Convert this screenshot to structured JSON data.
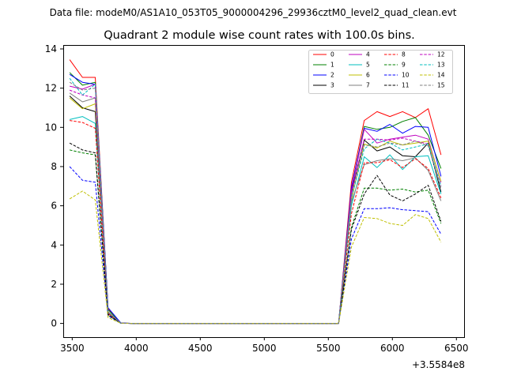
{
  "figure": {
    "suptitle": "Data file: modeM0/AS1A10_053T05_9000004296_29936cztM0_level2_quad_clean.evt",
    "x_offset_label": "+3.5584e8"
  },
  "chart_data": {
    "type": "line",
    "title": "Quadrant 2 module wise count rates with 100.0s bins.",
    "xlabel": "",
    "ylabel": "",
    "x_offset": 355840000,
    "xlim": [
      3430,
      6560
    ],
    "ylim": [
      -0.7,
      14.2
    ],
    "xticks": [
      3500,
      4000,
      4500,
      5000,
      5500,
      6000,
      6500
    ],
    "yticks": [
      0,
      2,
      4,
      6,
      8,
      10,
      12,
      14
    ],
    "legend_position": "top-right",
    "legend_columns": 4,
    "x": [
      3480,
      3580,
      3680,
      3780,
      3880,
      3980,
      4080,
      4180,
      4280,
      4380,
      4480,
      4580,
      4680,
      4780,
      4880,
      4980,
      5080,
      5180,
      5280,
      5380,
      5480,
      5580,
      5680,
      5780,
      5880,
      5980,
      6080,
      6180,
      6280,
      6380
    ],
    "series": [
      {
        "name": "0",
        "color": "#ff0000",
        "dash": "solid",
        "values": [
          13.45,
          12.55,
          12.55,
          0.75,
          0.02,
          0,
          0,
          0,
          0,
          0,
          0,
          0,
          0,
          0,
          0,
          0,
          0,
          0,
          0,
          0,
          0,
          0,
          7.2,
          10.35,
          10.8,
          10.55,
          10.8,
          10.5,
          10.95,
          8.6
        ]
      },
      {
        "name": "1",
        "color": "#008000",
        "dash": "solid",
        "values": [
          12.8,
          12.15,
          12.3,
          0.7,
          0.02,
          0,
          0,
          0,
          0,
          0,
          0,
          0,
          0,
          0,
          0,
          0,
          0,
          0,
          0,
          0,
          0,
          0,
          6.9,
          10.05,
          9.9,
          10.0,
          10.3,
          10.5,
          9.6,
          7.9
        ]
      },
      {
        "name": "2",
        "color": "#0000ff",
        "dash": "solid",
        "values": [
          12.7,
          12.3,
          12.2,
          0.8,
          0.02,
          0,
          0,
          0,
          0,
          0,
          0,
          0,
          0,
          0,
          0,
          0,
          0,
          0,
          0,
          0,
          0,
          0,
          6.95,
          9.95,
          9.8,
          10.15,
          9.7,
          10.05,
          10.0,
          7.5
        ]
      },
      {
        "name": "3",
        "color": "#000000",
        "dash": "solid",
        "values": [
          11.6,
          11.0,
          10.8,
          0.5,
          0.01,
          0,
          0,
          0,
          0,
          0,
          0,
          0,
          0,
          0,
          0,
          0,
          0,
          0,
          0,
          0,
          0,
          0,
          6.7,
          9.35,
          8.8,
          9.0,
          8.55,
          8.5,
          9.2,
          6.7
        ]
      },
      {
        "name": "4",
        "color": "#bf00bf",
        "dash": "solid",
        "values": [
          12.1,
          11.95,
          12.2,
          0.6,
          0.01,
          0,
          0,
          0,
          0,
          0,
          0,
          0,
          0,
          0,
          0,
          0,
          0,
          0,
          0,
          0,
          0,
          0,
          6.8,
          9.9,
          9.2,
          9.4,
          9.5,
          9.6,
          9.4,
          7.2
        ]
      },
      {
        "name": "5",
        "color": "#00bfbf",
        "dash": "solid",
        "values": [
          10.4,
          10.55,
          10.2,
          0.5,
          0.01,
          0,
          0,
          0,
          0,
          0,
          0,
          0,
          0,
          0,
          0,
          0,
          0,
          0,
          0,
          0,
          0,
          0,
          6.0,
          8.5,
          7.95,
          8.6,
          7.85,
          8.5,
          8.55,
          6.6
        ]
      },
      {
        "name": "6",
        "color": "#bfbf00",
        "dash": "solid",
        "values": [
          11.5,
          10.95,
          11.2,
          0.55,
          0.01,
          0,
          0,
          0,
          0,
          0,
          0,
          0,
          0,
          0,
          0,
          0,
          0,
          0,
          0,
          0,
          0,
          0,
          6.3,
          9.15,
          8.95,
          9.3,
          9.1,
          9.2,
          9.3,
          7.25
        ]
      },
      {
        "name": "7",
        "color": "#808080",
        "dash": "solid",
        "values": [
          11.75,
          11.3,
          11.5,
          0.55,
          0.01,
          0,
          0,
          0,
          0,
          0,
          0,
          0,
          0,
          0,
          0,
          0,
          0,
          0,
          0,
          0,
          0,
          0,
          6.2,
          8.1,
          8.3,
          8.4,
          8.3,
          8.45,
          7.8,
          6.25
        ]
      },
      {
        "name": "8",
        "color": "#ff0000",
        "dash": "dashed",
        "values": [
          10.35,
          10.25,
          9.95,
          0.5,
          0.01,
          0,
          0,
          0,
          0,
          0,
          0,
          0,
          0,
          0,
          0,
          0,
          0,
          0,
          0,
          0,
          0,
          0,
          5.6,
          8.2,
          8.2,
          8.35,
          7.95,
          8.4,
          7.9,
          6.4
        ]
      },
      {
        "name": "9",
        "color": "#008000",
        "dash": "dashed",
        "values": [
          8.85,
          8.7,
          8.6,
          0.4,
          0.01,
          0,
          0,
          0,
          0,
          0,
          0,
          0,
          0,
          0,
          0,
          0,
          0,
          0,
          0,
          0,
          0,
          0,
          4.9,
          6.9,
          6.9,
          6.8,
          6.85,
          6.7,
          6.8,
          5.1
        ]
      },
      {
        "name": "10",
        "color": "#0000ff",
        "dash": "dashed",
        "values": [
          8.0,
          7.3,
          7.2,
          0.4,
          0.01,
          0,
          0,
          0,
          0,
          0,
          0,
          0,
          0,
          0,
          0,
          0,
          0,
          0,
          0,
          0,
          0,
          0,
          4.3,
          5.85,
          5.85,
          5.9,
          5.8,
          5.75,
          5.7,
          4.55
        ]
      },
      {
        "name": "11",
        "color": "#000000",
        "dash": "dashed",
        "values": [
          9.2,
          8.85,
          8.7,
          0.45,
          0.01,
          0,
          0,
          0,
          0,
          0,
          0,
          0,
          0,
          0,
          0,
          0,
          0,
          0,
          0,
          0,
          0,
          0,
          4.8,
          6.6,
          7.55,
          6.55,
          6.25,
          6.6,
          7.05,
          5.2
        ]
      },
      {
        "name": "12",
        "color": "#bf00bf",
        "dash": "dashed",
        "values": [
          11.9,
          11.65,
          11.5,
          0.6,
          0.01,
          0,
          0,
          0,
          0,
          0,
          0,
          0,
          0,
          0,
          0,
          0,
          0,
          0,
          0,
          0,
          0,
          0,
          6.6,
          9.4,
          9.4,
          9.35,
          9.45,
          9.3,
          9.15,
          7.0
        ]
      },
      {
        "name": "13",
        "color": "#00bfbf",
        "dash": "dashed",
        "values": [
          12.5,
          11.65,
          12.2,
          0.6,
          0.01,
          0,
          0,
          0,
          0,
          0,
          0,
          0,
          0,
          0,
          0,
          0,
          0,
          0,
          0,
          0,
          0,
          0,
          6.4,
          8.9,
          9.4,
          9.2,
          8.85,
          9.0,
          9.15,
          7.0
        ]
      },
      {
        "name": "14",
        "color": "#bfbf00",
        "dash": "dashed",
        "values": [
          6.35,
          6.75,
          6.3,
          0.3,
          0.01,
          0,
          0,
          0,
          0,
          0,
          0,
          0,
          0,
          0,
          0,
          0,
          0,
          0,
          0,
          0,
          0,
          0,
          3.9,
          5.4,
          5.35,
          5.1,
          5.0,
          5.55,
          5.35,
          4.15
        ]
      },
      {
        "name": "15",
        "color": "#808080",
        "dash": "dashed",
        "values": [
          12.3,
          11.9,
          12.0,
          0.6,
          0.01,
          0,
          0,
          0,
          0,
          0,
          0,
          0,
          0,
          0,
          0,
          0,
          0,
          0,
          0,
          0,
          0,
          0,
          6.5,
          9.1,
          9.0,
          9.2,
          9.1,
          9.3,
          9.05,
          6.9
        ]
      }
    ]
  }
}
